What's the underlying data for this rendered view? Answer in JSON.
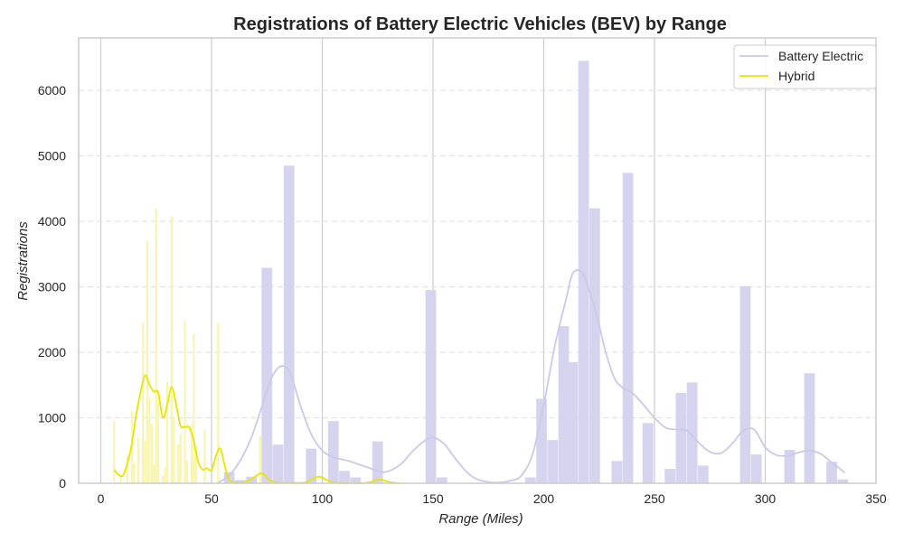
{
  "chart_data": {
    "type": "bar",
    "title": "Registrations of Battery Electric Vehicles (BEV) by Range",
    "xlabel": "Range (Miles)",
    "ylabel": "Registrations",
    "xlim": [
      -10,
      350
    ],
    "ylim": [
      0,
      6800
    ],
    "x_ticks": [
      0,
      50,
      100,
      150,
      200,
      250,
      300,
      350
    ],
    "y_ticks": [
      0,
      1000,
      2000,
      3000,
      4000,
      5000,
      6000
    ],
    "grid": {
      "x": "solid",
      "y": "dashed"
    },
    "legend": {
      "position": "top-right",
      "entries": [
        "Battery Electric",
        "Hybrid"
      ]
    },
    "colors": {
      "bev_bar": "#d6d3ee",
      "bev_line": "#ccc8e8",
      "hybrid_bar": "#f8f5b0",
      "hybrid_line": "#e8e600",
      "grid": "#cccccc",
      "axis": "#cccccc",
      "text": "#262626"
    },
    "series": [
      {
        "name": "Battery Electric",
        "kind": "histogram",
        "bin_width": 4.8,
        "bins": [
          {
            "x": 53,
            "value": 0
          },
          {
            "x": 58,
            "value": 170
          },
          {
            "x": 63,
            "value": 50
          },
          {
            "x": 68,
            "value": 100
          },
          {
            "x": 73,
            "value": 0
          },
          {
            "x": 75,
            "value": 3290
          },
          {
            "x": 80,
            "value": 590
          },
          {
            "x": 85,
            "value": 4850
          },
          {
            "x": 95,
            "value": 530
          },
          {
            "x": 105,
            "value": 950
          },
          {
            "x": 110,
            "value": 190
          },
          {
            "x": 115,
            "value": 90
          },
          {
            "x": 125,
            "value": 640
          },
          {
            "x": 149,
            "value": 2950
          },
          {
            "x": 154,
            "value": 90
          },
          {
            "x": 194,
            "value": 90
          },
          {
            "x": 199,
            "value": 1290
          },
          {
            "x": 204,
            "value": 660
          },
          {
            "x": 209,
            "value": 2400
          },
          {
            "x": 213,
            "value": 1850
          },
          {
            "x": 218,
            "value": 6450
          },
          {
            "x": 223,
            "value": 4200
          },
          {
            "x": 233,
            "value": 340
          },
          {
            "x": 238,
            "value": 4740
          },
          {
            "x": 247,
            "value": 920
          },
          {
            "x": 257,
            "value": 220
          },
          {
            "x": 262,
            "value": 1380
          },
          {
            "x": 267,
            "value": 1540
          },
          {
            "x": 272,
            "value": 270
          },
          {
            "x": 291,
            "value": 3010
          },
          {
            "x": 296,
            "value": 440
          },
          {
            "x": 311,
            "value": 510
          },
          {
            "x": 320,
            "value": 1680
          },
          {
            "x": 330,
            "value": 330
          },
          {
            "x": 335,
            "value": 60
          }
        ],
        "density": {
          "x": [
            53,
            58,
            63,
            68,
            73,
            77,
            80,
            83,
            86,
            90,
            95,
            100,
            105,
            112,
            120,
            128,
            135,
            140,
            145,
            150,
            155,
            160,
            165,
            170,
            178,
            185,
            190,
            195,
            200,
            205,
            210,
            213,
            217,
            220,
            224,
            228,
            232,
            236,
            240,
            245,
            250,
            255,
            260,
            265,
            270,
            275,
            280,
            285,
            290,
            295,
            300,
            305,
            310,
            315,
            320,
            325,
            330,
            336
          ],
          "y": [
            10,
            120,
            350,
            700,
            1200,
            1600,
            1760,
            1780,
            1650,
            1200,
            750,
            500,
            400,
            340,
            250,
            170,
            280,
            460,
            620,
            700,
            600,
            380,
            180,
            60,
            10,
            40,
            120,
            450,
            1200,
            2100,
            2800,
            3200,
            3230,
            3000,
            2550,
            2000,
            1600,
            1450,
            1380,
            1200,
            1000,
            850,
            820,
            800,
            620,
            480,
            460,
            600,
            800,
            820,
            550,
            430,
            420,
            470,
            500,
            450,
            320,
            160
          ]
        }
      },
      {
        "name": "Hybrid",
        "kind": "histogram",
        "bin_width": 0.9,
        "bins": [
          {
            "x": 6,
            "value": 950
          },
          {
            "x": 9,
            "value": 100
          },
          {
            "x": 12,
            "value": 420
          },
          {
            "x": 14,
            "value": 1100
          },
          {
            "x": 15,
            "value": 300
          },
          {
            "x": 17,
            "value": 700
          },
          {
            "x": 19,
            "value": 2450
          },
          {
            "x": 20,
            "value": 650
          },
          {
            "x": 21,
            "value": 3700
          },
          {
            "x": 22,
            "value": 1300
          },
          {
            "x": 23,
            "value": 900
          },
          {
            "x": 24,
            "value": 300
          },
          {
            "x": 25,
            "value": 4200
          },
          {
            "x": 26,
            "value": 1400
          },
          {
            "x": 28,
            "value": 120
          },
          {
            "x": 29,
            "value": 250
          },
          {
            "x": 30,
            "value": 1550
          },
          {
            "x": 32,
            "value": 4080
          },
          {
            "x": 33,
            "value": 1000
          },
          {
            "x": 35,
            "value": 600
          },
          {
            "x": 36,
            "value": 750
          },
          {
            "x": 38,
            "value": 2480
          },
          {
            "x": 39,
            "value": 350
          },
          {
            "x": 41,
            "value": 900
          },
          {
            "x": 42,
            "value": 2280
          },
          {
            "x": 43,
            "value": 500
          },
          {
            "x": 47,
            "value": 820
          },
          {
            "x": 53,
            "value": 2460
          },
          {
            "x": 72,
            "value": 720
          }
        ],
        "density": {
          "x": [
            6,
            8,
            10,
            12,
            14,
            16,
            18,
            20,
            22,
            24,
            26,
            28,
            30,
            32,
            34,
            36,
            38,
            40,
            42,
            44,
            46,
            48,
            50,
            52,
            54,
            56,
            58,
            62,
            66,
            70,
            72,
            74,
            76,
            80,
            86,
            92,
            96,
            98,
            100,
            102,
            106,
            112,
            118,
            122,
            126,
            130,
            135
          ],
          "y": [
            210,
            130,
            120,
            300,
            600,
            1050,
            1400,
            1650,
            1500,
            1400,
            1380,
            1000,
            1200,
            1470,
            1200,
            880,
            860,
            850,
            650,
            320,
            210,
            230,
            200,
            420,
            530,
            260,
            50,
            10,
            30,
            110,
            150,
            130,
            50,
            10,
            5,
            10,
            70,
            100,
            90,
            50,
            10,
            0,
            0,
            20,
            60,
            20,
            0
          ]
        }
      }
    ]
  }
}
